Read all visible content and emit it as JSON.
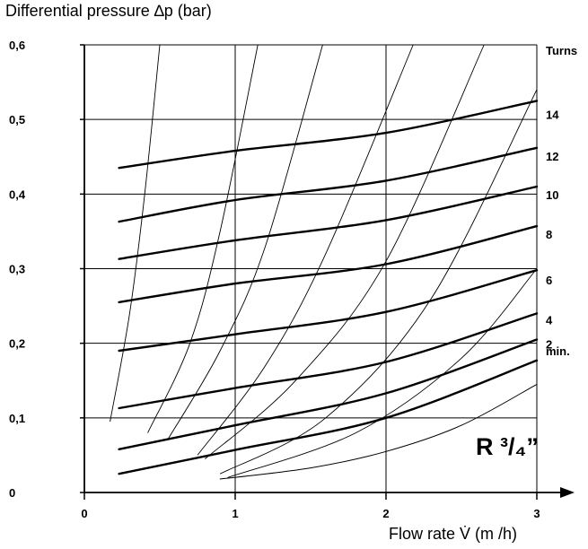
{
  "chart_data": {
    "type": "line",
    "ylabel": "Differential pressure ∆p (bar)",
    "xlabel": "Flow rate V̇ (m /h)",
    "x_ticks": [
      "0",
      "1",
      "2",
      "3"
    ],
    "y_ticks": [
      "0",
      "0,1",
      "0,2",
      "0,3",
      "0,4",
      "0,5",
      "0,6"
    ],
    "xlim": [
      0,
      3
    ],
    "ylim": [
      0,
      0.6
    ],
    "grid": true,
    "model_label": "R ³/₄”",
    "turns_title": "Turns",
    "turns_labels": [
      "14",
      "12",
      "10",
      "8",
      "6",
      "4",
      "2",
      "min."
    ],
    "series": [
      {
        "name": "14",
        "x": [
          0.23,
          1.0,
          2.0,
          3.0
        ],
        "y": [
          0.435,
          0.458,
          0.482,
          0.525
        ]
      },
      {
        "name": "12",
        "x": [
          0.23,
          1.0,
          2.0,
          3.0
        ],
        "y": [
          0.363,
          0.392,
          0.418,
          0.462
        ]
      },
      {
        "name": "10",
        "x": [
          0.23,
          1.0,
          2.0,
          3.0
        ],
        "y": [
          0.313,
          0.338,
          0.365,
          0.41
        ]
      },
      {
        "name": "8",
        "x": [
          0.23,
          1.0,
          2.0,
          3.0
        ],
        "y": [
          0.255,
          0.28,
          0.306,
          0.357
        ]
      },
      {
        "name": "6",
        "x": [
          0.23,
          1.0,
          2.0,
          3.0
        ],
        "y": [
          0.19,
          0.212,
          0.242,
          0.298
        ]
      },
      {
        "name": "4",
        "x": [
          0.23,
          1.0,
          2.0,
          3.0
        ],
        "y": [
          0.113,
          0.14,
          0.175,
          0.24
        ]
      },
      {
        "name": "2",
        "x": [
          0.23,
          1.0,
          2.0,
          3.0
        ],
        "y": [
          0.058,
          0.09,
          0.133,
          0.205
        ]
      },
      {
        "name": "min.",
        "x": [
          0.23,
          1.0,
          2.0,
          3.0
        ],
        "y": [
          0.025,
          0.057,
          0.1,
          0.177
        ]
      },
      {
        "name": "",
        "x": [
          0.9,
          1.5,
          2.0,
          2.5,
          3.0
        ],
        "y": [
          0.018,
          0.033,
          0.055,
          0.09,
          0.145
        ]
      }
    ],
    "system_curves": [
      {
        "x": [
          0.17,
          0.3,
          0.4,
          0.5
        ],
        "y": [
          0.095,
          0.24,
          0.4,
          0.6
        ]
      },
      {
        "x": [
          0.42,
          0.7,
          0.9,
          1.15
        ],
        "y": [
          0.08,
          0.2,
          0.35,
          0.6
        ]
      },
      {
        "x": [
          0.55,
          0.9,
          1.2,
          1.58
        ],
        "y": [
          0.07,
          0.19,
          0.33,
          0.6
        ]
      },
      {
        "x": [
          0.75,
          1.2,
          1.6,
          2.18
        ],
        "y": [
          0.05,
          0.17,
          0.32,
          0.6
        ]
      },
      {
        "x": [
          0.8,
          1.4,
          2.0,
          2.65
        ],
        "y": [
          0.045,
          0.15,
          0.31,
          0.6
        ]
      },
      {
        "x": [
          0.9,
          1.6,
          2.3,
          3.0
        ],
        "y": [
          0.025,
          0.1,
          0.26,
          0.54
        ]
      },
      {
        "x": [
          0.95,
          1.8,
          2.5,
          3.0
        ],
        "y": [
          0.02,
          0.08,
          0.18,
          0.3
        ]
      }
    ]
  }
}
